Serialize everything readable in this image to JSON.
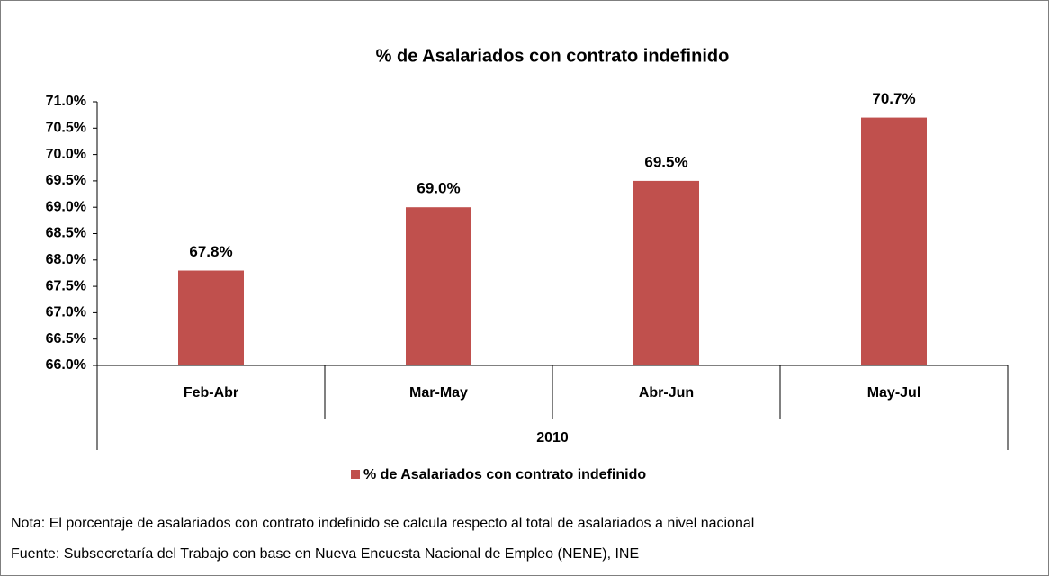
{
  "chart_data": {
    "type": "bar",
    "title": "% de Asalariados con contrato indefinido",
    "categories": [
      "Feb-Abr",
      "Mar-May",
      "Abr-Jun",
      "May-Jul"
    ],
    "group_label": "2010",
    "series": [
      {
        "name": "% de Asalariados con contrato indefinido",
        "color": "#c0504d",
        "values": [
          67.8,
          69.0,
          69.5,
          70.7
        ],
        "value_labels": [
          "67.8%",
          "69.0%",
          "69.5%",
          "70.7%"
        ]
      }
    ],
    "ylim": [
      66,
      71
    ],
    "yticks": [
      {
        "value": 66,
        "label": "66.0%"
      },
      {
        "value": 66.5,
        "label": "66.5%"
      },
      {
        "value": 67,
        "label": "67.0%"
      },
      {
        "value": 67.5,
        "label": "67.5%"
      },
      {
        "value": 68,
        "label": "68.0%"
      },
      {
        "value": 68.5,
        "label": "68.5%"
      },
      {
        "value": 69,
        "label": "69.0%"
      },
      {
        "value": 69.5,
        "label": "69.5%"
      },
      {
        "value": 70,
        "label": "70.0%"
      },
      {
        "value": 70.5,
        "label": "70.5%"
      },
      {
        "value": 71,
        "label": "71.0%"
      }
    ],
    "legend": "bottom"
  },
  "notes": [
    "Nota: El porcentaje de asalariados con contrato indefinido se calcula respecto al total de asalariados a nivel nacional",
    "Fuente: Subsecretaría del Trabajo con base en Nueva Encuesta Nacional de Empleo (NENE), INE"
  ]
}
